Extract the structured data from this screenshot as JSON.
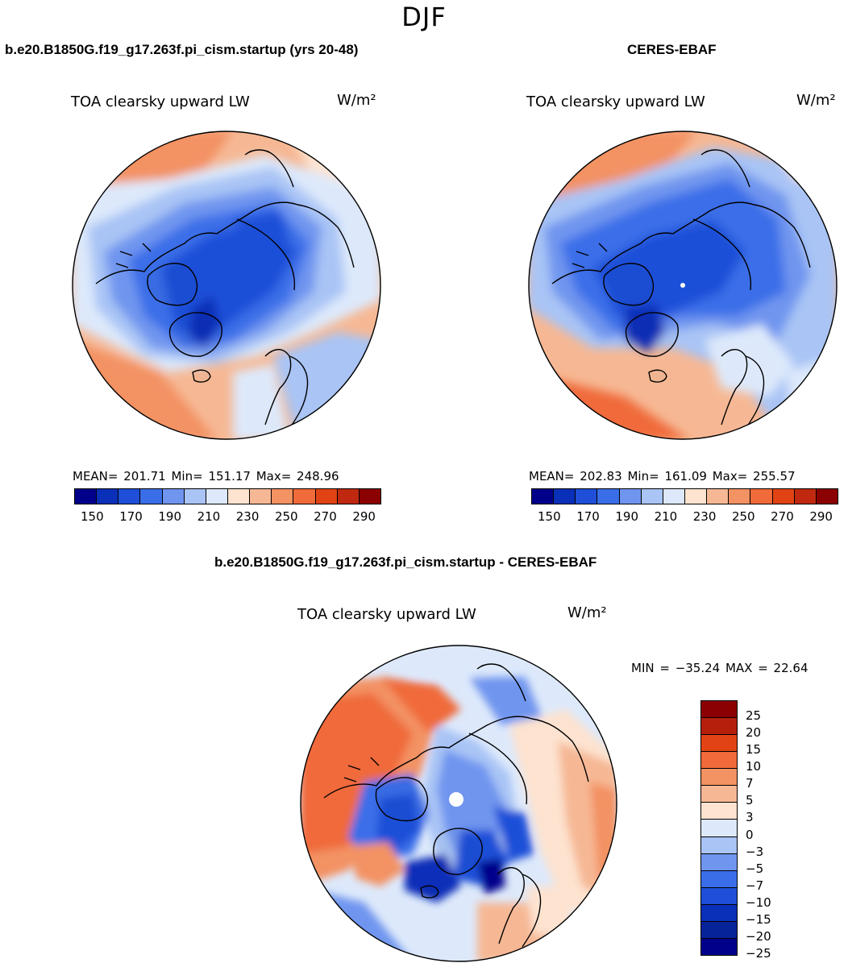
{
  "season": "DJF",
  "panel_left": {
    "title": "b.e20.B1850G.f19_g17.263f.pi_cism.startup (yrs 20-48)",
    "variable": "TOA clearsky upward LW",
    "units": "W/m²",
    "stats": "MEAN= 201.71   Min= 151.17   Max= 248.96",
    "colorbar_ticks": [
      "150",
      "170",
      "190",
      "210",
      "230",
      "250",
      "270",
      "290"
    ]
  },
  "panel_right": {
    "title": "CERES-EBAF",
    "variable": "TOA clearsky upward LW",
    "units": "W/m²",
    "stats": "MEAN= 202.83   Min= 161.09   Max= 255.57",
    "colorbar_ticks": [
      "150",
      "170",
      "190",
      "210",
      "230",
      "250",
      "270",
      "290"
    ]
  },
  "panel_diff": {
    "title": "b.e20.B1850G.f19_g17.263f.pi_cism.startup - CERES-EBAF",
    "variable": "TOA clearsky upward LW",
    "units": "W/m²",
    "stats": "MIN = −35.24 MAX =   22.64",
    "colorbar_ticks": [
      "25",
      "20",
      "15",
      "10",
      "7",
      "5",
      "3",
      "0",
      "−3",
      "−5",
      "−7",
      "−10",
      "−15",
      "−20",
      "−25"
    ]
  },
  "colors": {
    "abs_scale": [
      "#00008b",
      "#0a2fb8",
      "#1f4fd8",
      "#3a6ee8",
      "#6f95ef",
      "#a9c4f5",
      "#dde9fb",
      "#fde3d0",
      "#f6b894",
      "#f39263",
      "#f06a3a",
      "#e24315",
      "#c0290f",
      "#8b0000"
    ],
    "diff_scale": [
      "#8b0000",
      "#b5200d",
      "#e24315",
      "#f06a3a",
      "#f39263",
      "#f6b894",
      "#fde3d0",
      "#dde9fb",
      "#a9c4f5",
      "#6f95ef",
      "#3a6ee8",
      "#1f4fd8",
      "#0a2fb8",
      "#06239a",
      "#00008b"
    ]
  }
}
